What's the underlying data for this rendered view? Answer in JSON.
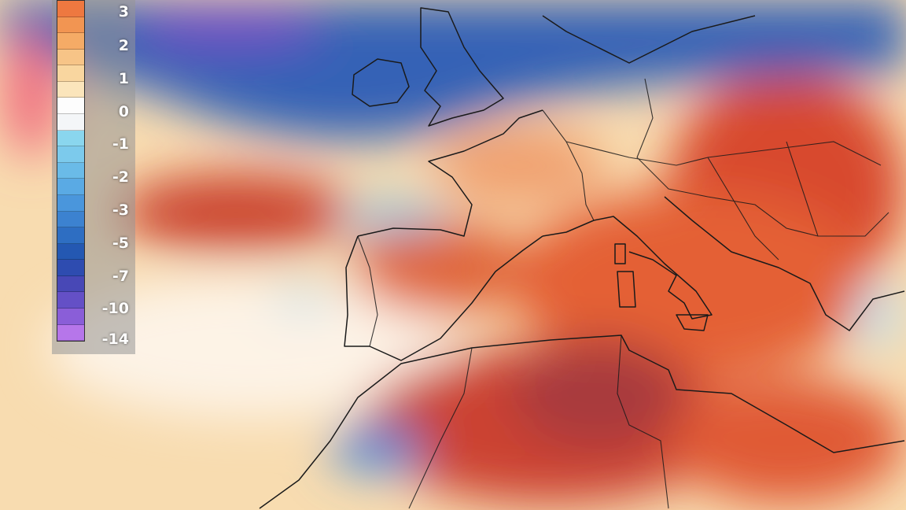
{
  "legend": {
    "labels": [
      "3",
      "2",
      "1",
      "0",
      "-1",
      "-2",
      "-3",
      "-5",
      "-7",
      "-10",
      "-14"
    ],
    "colors": [
      "#ee7840",
      "#f29552",
      "#f5ab66",
      "#f7c487",
      "#f9d69f",
      "#fbe5bb",
      "#fdfdfd",
      "#f4f6f8",
      "#8ad6ee",
      "#7ccaec",
      "#6abbe8",
      "#5aaae4",
      "#4a96dc",
      "#3c82d0",
      "#2e6ec2",
      "#2458b2",
      "#2e4cb0",
      "#4848b6",
      "#6450c6",
      "#8a5ed8",
      "#b676ea"
    ]
  },
  "palette": {
    "base": "#f8dcb0",
    "warm": "#e8683a",
    "hot": "#c8402c",
    "very_hot": "#a83838",
    "cold": "#2f5fb4",
    "very_cold": "#6a48c0",
    "coast": "#1a1a1a"
  }
}
